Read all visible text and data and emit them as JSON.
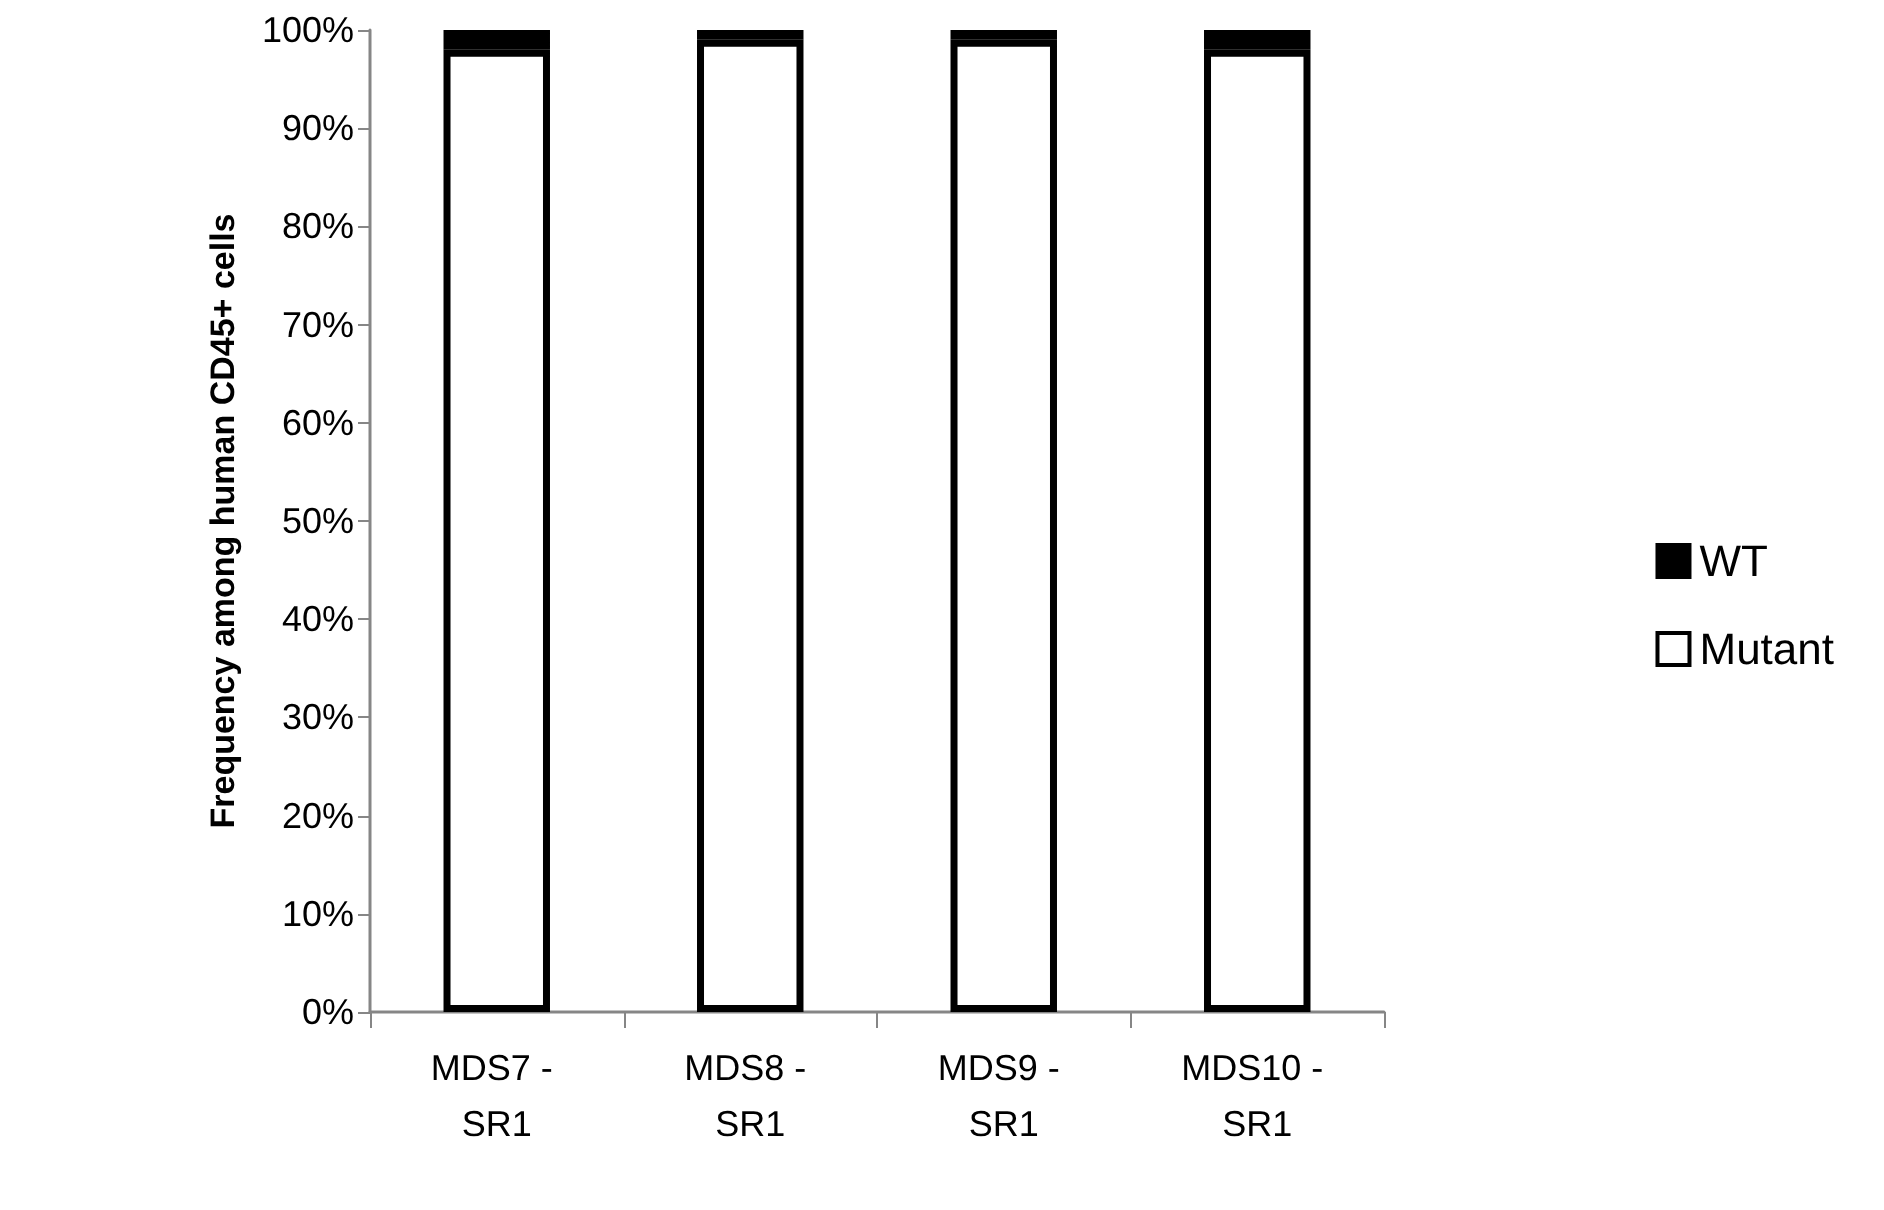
{
  "chart_data": {
    "type": "bar",
    "stacked": true,
    "ylabel": "Frequency among human CD45+ cells",
    "categories": [
      "MDS7 - SR1",
      "MDS8 - SR1",
      "MDS9 - SR1",
      "MDS10 - SR1"
    ],
    "series": [
      {
        "name": "Mutant",
        "color": "#ffffff",
        "values": [
          98,
          99,
          99,
          98
        ]
      },
      {
        "name": "WT",
        "color": "#000000",
        "values": [
          2,
          1,
          1,
          2
        ]
      }
    ],
    "ylim": [
      0,
      100
    ],
    "yticks": [
      {
        "value": 0,
        "label": "0%"
      },
      {
        "value": 10,
        "label": "10%"
      },
      {
        "value": 20,
        "label": "20%"
      },
      {
        "value": 30,
        "label": "30%"
      },
      {
        "value": 40,
        "label": "40%"
      },
      {
        "value": 50,
        "label": "50%"
      },
      {
        "value": 60,
        "label": "60%"
      },
      {
        "value": 70,
        "label": "70%"
      },
      {
        "value": 80,
        "label": "80%"
      },
      {
        "value": 90,
        "label": "90%"
      },
      {
        "value": 100,
        "label": "100%"
      }
    ],
    "grid": false,
    "legend": "right"
  }
}
